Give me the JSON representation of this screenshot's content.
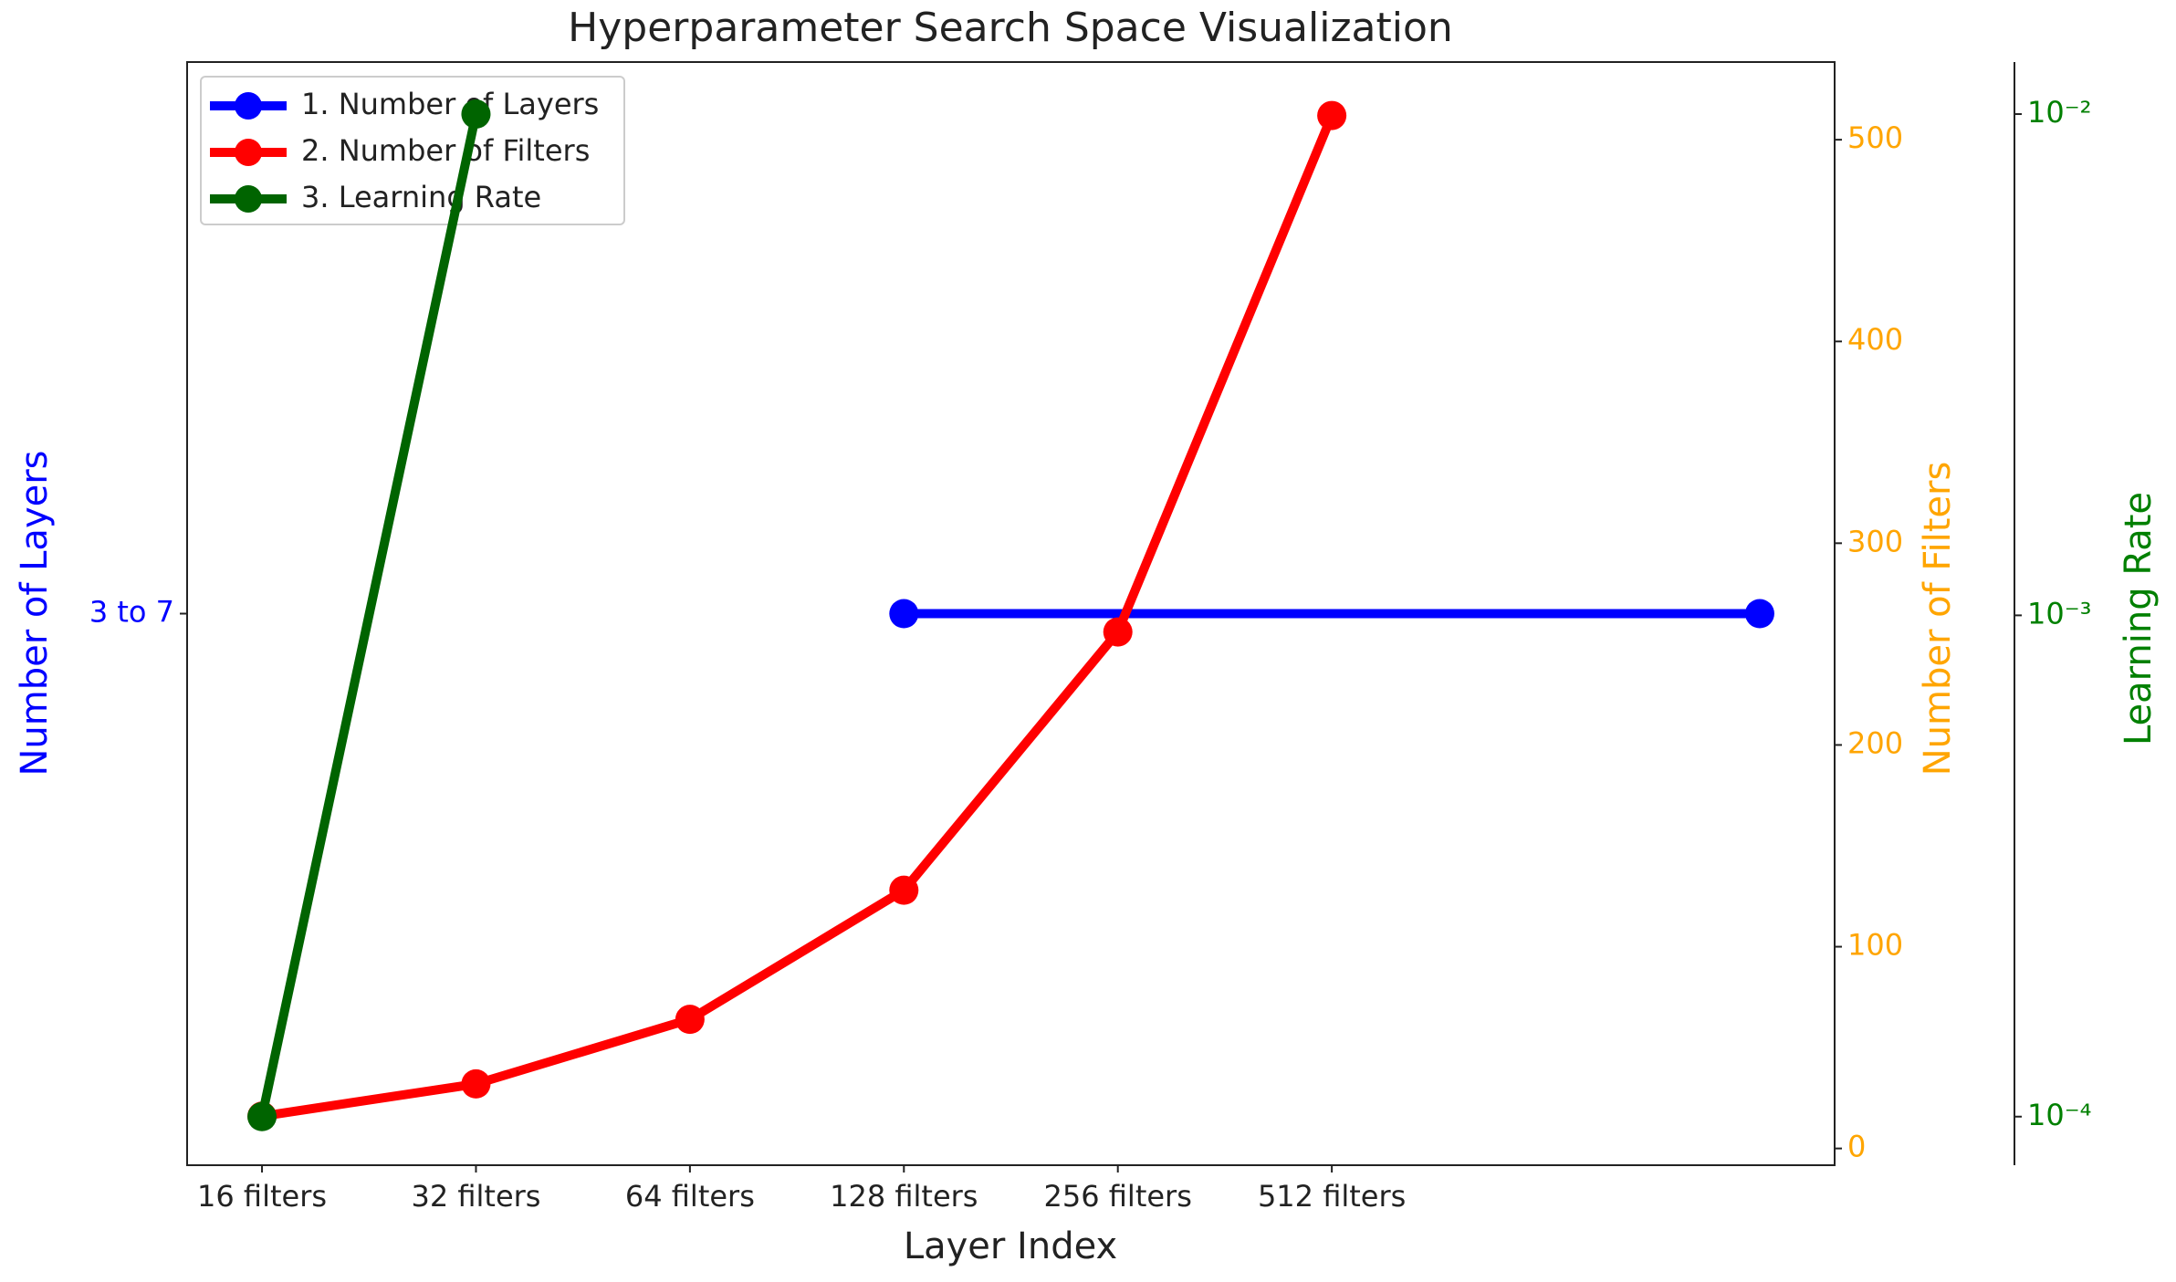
{
  "chart_data": {
    "type": "line",
    "title": "Hyperparameter Search Space Visualization",
    "xlabel": "Layer Index",
    "ylabel": "Number of Layers",
    "y2label": "Number of Filters",
    "y3label": "Learning Rate",
    "xlim": [
      -0.35,
      7.35
    ],
    "xticks": [
      {
        "value": 0,
        "label": "16 filters"
      },
      {
        "value": 1,
        "label": "32 filters"
      },
      {
        "value": 2,
        "label": "64 filters"
      },
      {
        "value": 3,
        "label": "128 filters"
      },
      {
        "value": 4,
        "label": "256 filters"
      },
      {
        "value": 5,
        "label": "512 filters"
      }
    ],
    "ylim": [
      0,
      10
    ],
    "yticks": [
      {
        "value": 5,
        "label": "3 to 7"
      }
    ],
    "y2lim": [
      -8.3,
      538.5
    ],
    "y2ticks": [
      0,
      100,
      200,
      300,
      400,
      500
    ],
    "y3lim": [
      8e-05,
      0.0127
    ],
    "y3_scale": "log",
    "y3ticks": [
      {
        "value": 0.0001,
        "label": "10⁻⁴"
      },
      {
        "value": 0.001,
        "label": "10⁻³"
      },
      {
        "value": 0.01,
        "label": "10⁻²"
      }
    ],
    "axis_colors": {
      "y": "#0000ff",
      "y2": "#ffa500",
      "y3": "#008000"
    },
    "legend": "upper left",
    "series": [
      {
        "name": "1. Number of Layers",
        "color": "#0000ff",
        "axis": "y",
        "x": [
          3,
          7
        ],
        "values": [
          5,
          5
        ]
      },
      {
        "name": "2. Number of Filters",
        "color": "#ff0000",
        "axis": "y2",
        "x": [
          0,
          1,
          2,
          3,
          4,
          5
        ],
        "values": [
          16,
          32,
          64,
          128,
          256,
          512
        ]
      },
      {
        "name": "3. Learning Rate",
        "color": "#006400",
        "axis": "y3",
        "x": [
          0,
          1
        ],
        "values": [
          0.0001,
          0.01
        ]
      }
    ]
  }
}
